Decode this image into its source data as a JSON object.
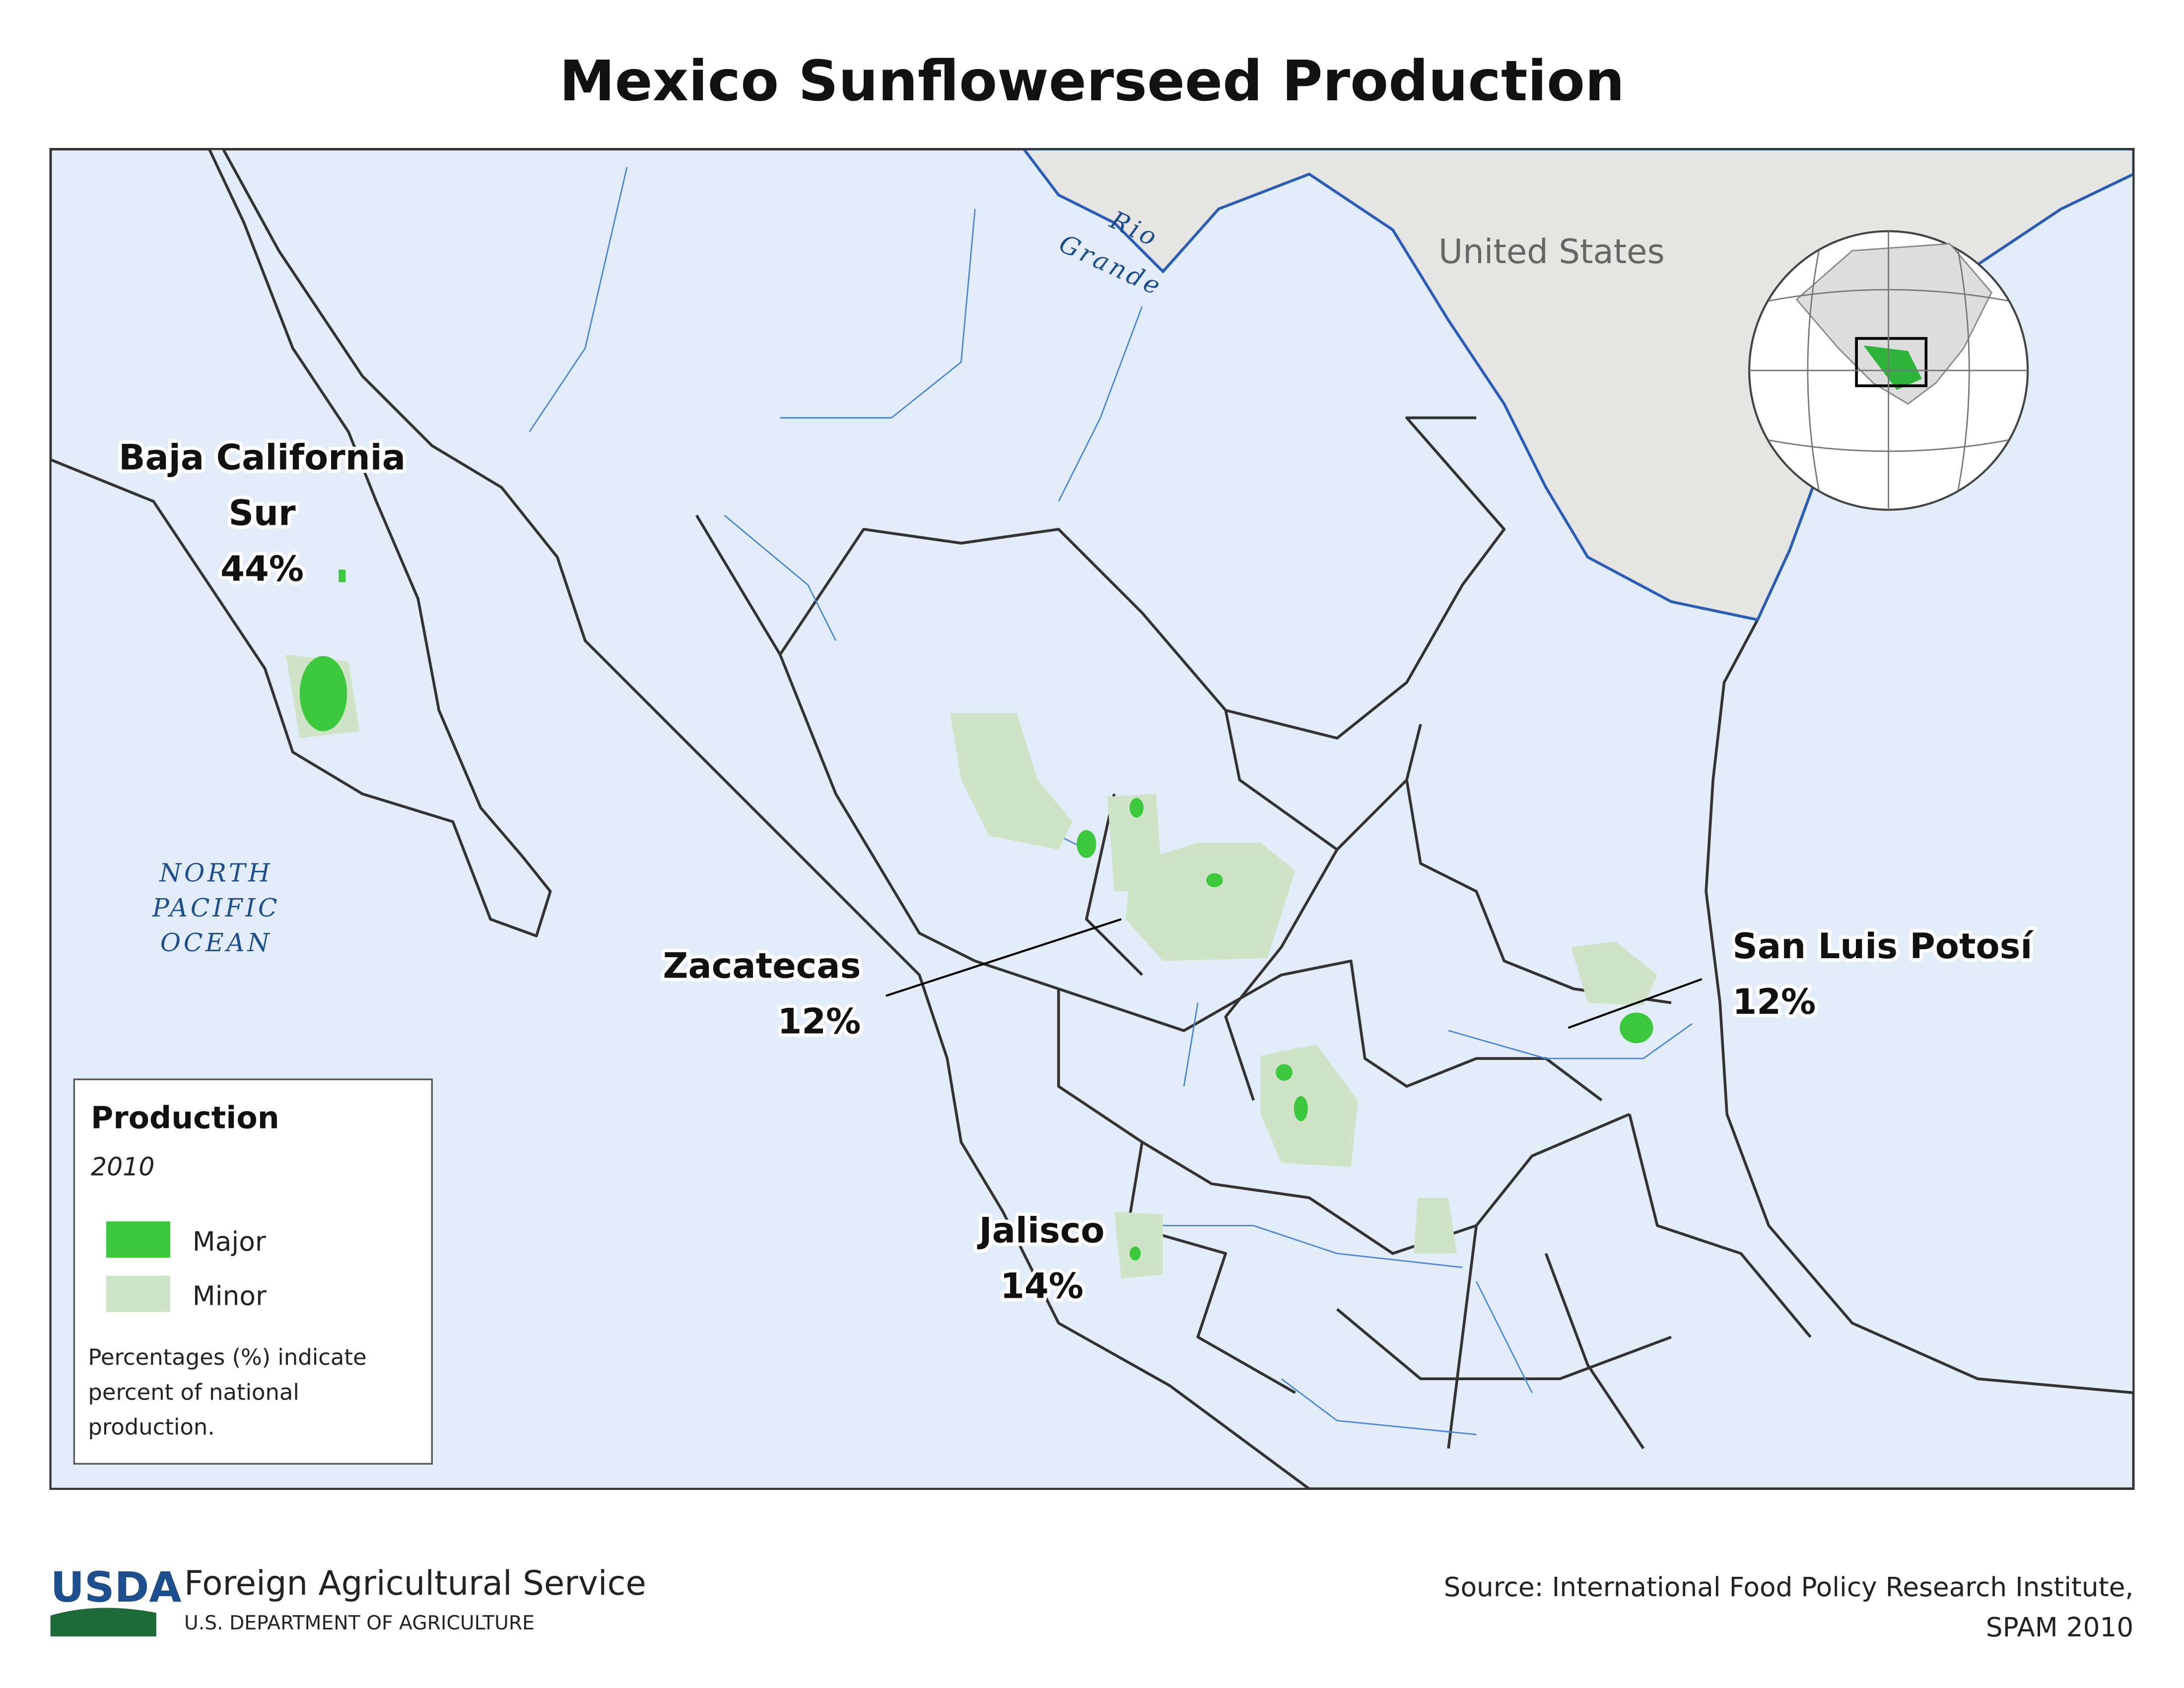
{
  "title": "Mexico Sunflowerseed Production",
  "map": {
    "country_label": "United States",
    "river_label": [
      "Rio",
      "Grande"
    ],
    "ocean_label": [
      "NORTH",
      "PACIFIC",
      "OCEAN"
    ],
    "regions": [
      {
        "name": [
          "Baja California",
          "Sur"
        ],
        "share": "44%"
      },
      {
        "name": [
          "Zacatecas"
        ],
        "share": "12%"
      },
      {
        "name": [
          "Jalisco"
        ],
        "share": "14%"
      },
      {
        "name": [
          "San Luis Potosí"
        ],
        "share": "12%"
      }
    ]
  },
  "legend": {
    "title": "Production",
    "subtitle": "2010",
    "items": [
      {
        "label": "Major",
        "color": "#3cc83c"
      },
      {
        "label": "Minor",
        "color": "#cfe4c6"
      }
    ],
    "note": [
      "Percentages (%) indicate",
      "percent of national",
      "production."
    ]
  },
  "footer": {
    "logo": "USDA",
    "agency": "Foreign Agricultural Service",
    "department": "U.S. DEPARTMENT OF AGRICULTURE",
    "source": [
      "Source: International Food Policy Research Institute,",
      "SPAM 2010"
    ]
  }
}
